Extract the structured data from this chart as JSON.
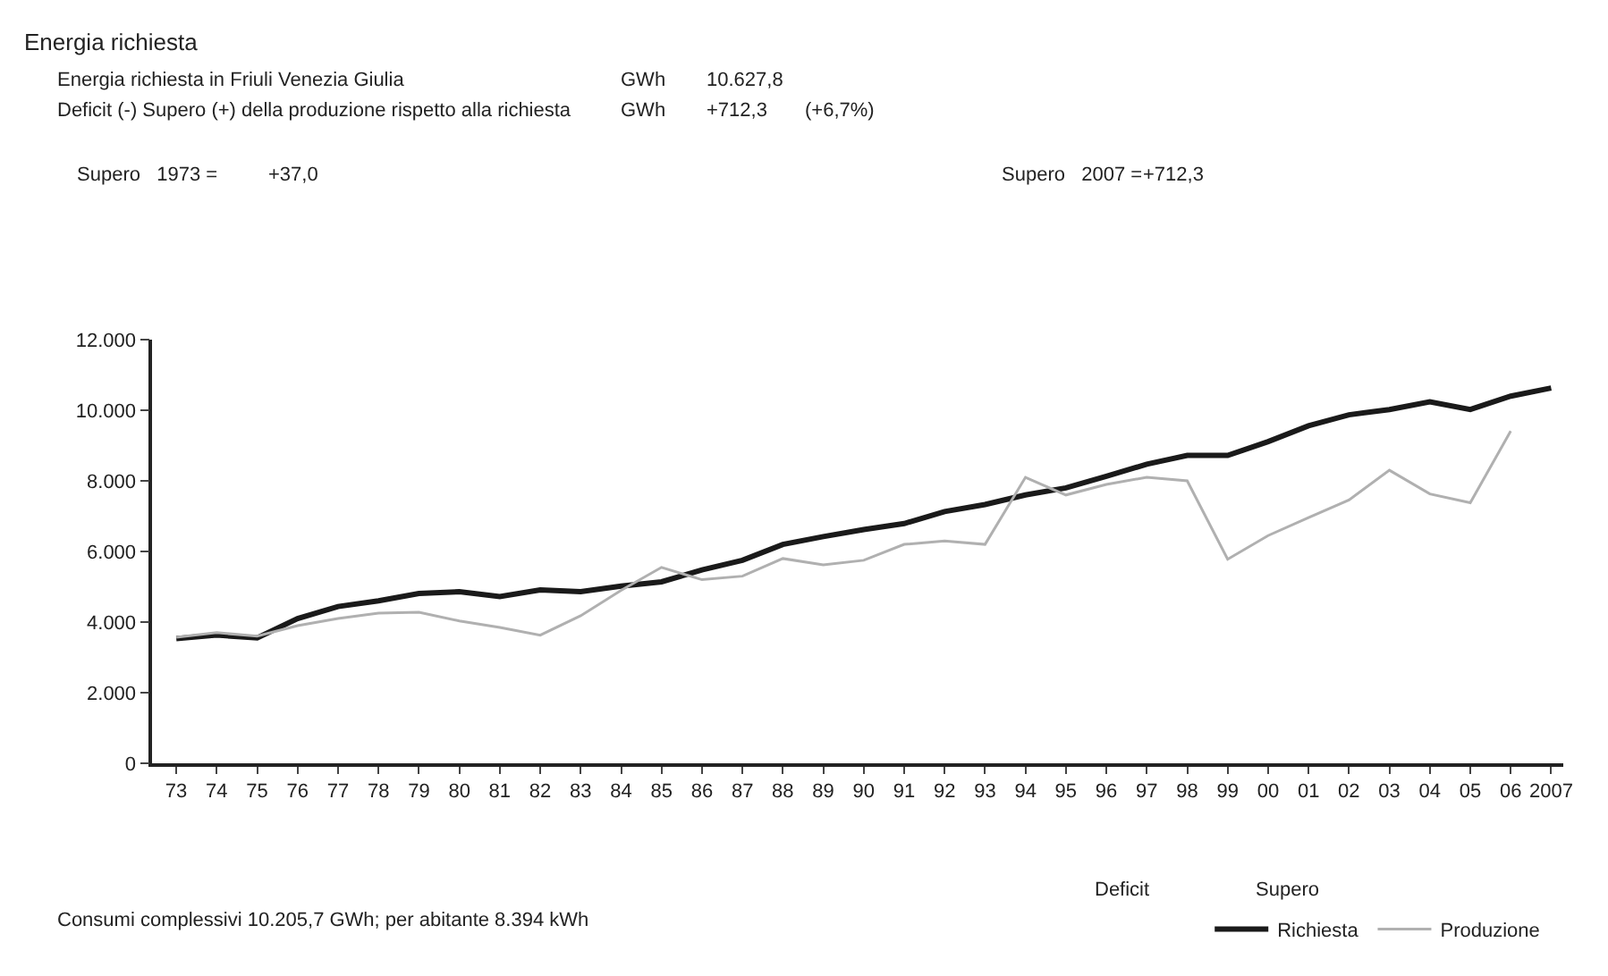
{
  "chart_data": {
    "type": "line",
    "title": "Energia richiesta",
    "categories": [
      "73",
      "74",
      "75",
      "76",
      "77",
      "78",
      "79",
      "80",
      "81",
      "82",
      "83",
      "84",
      "85",
      "86",
      "87",
      "88",
      "89",
      "90",
      "91",
      "92",
      "93",
      "94",
      "95",
      "96",
      "97",
      "98",
      "99",
      "00",
      "01",
      "02",
      "03",
      "04",
      "05",
      "06",
      "2007"
    ],
    "series": [
      {
        "name": "Richiesta",
        "color": "#1a1a1a",
        "values": [
          3530,
          3630,
          3550,
          4100,
          4440,
          4600,
          4810,
          4860,
          4720,
          4910,
          4860,
          5020,
          5140,
          5480,
          5750,
          6200,
          6420,
          6620,
          6790,
          7130,
          7330,
          7600,
          7800,
          8130,
          8470,
          8720,
          8720,
          9110,
          9560,
          9870,
          10020,
          10240,
          10020,
          10400,
          10630
        ]
      },
      {
        "name": "Produzione",
        "color": "#b0b0b0",
        "values": [
          3570,
          3700,
          3600,
          3900,
          4100,
          4250,
          4280,
          4030,
          3850,
          3630,
          4180,
          4900,
          5550,
          5200,
          5300,
          5800,
          5620,
          5750,
          6200,
          6300,
          6200,
          8100,
          7600,
          7900,
          8100,
          8000,
          5780,
          6450,
          6960,
          7460,
          8300,
          7630,
          7380,
          9410,
          null
        ]
      }
    ],
    "ylim": [
      0,
      12000
    ],
    "yticks": [
      {
        "value": 0,
        "label": "0"
      },
      {
        "value": 2000,
        "label": "2.000"
      },
      {
        "value": 4000,
        "label": "4.000"
      },
      {
        "value": 6000,
        "label": "6.000"
      },
      {
        "value": 8000,
        "label": "8.000"
      },
      {
        "value": 10000,
        "label": "10.000"
      },
      {
        "value": 12000,
        "label": "12.000"
      }
    ],
    "legend": "bottom right",
    "marker": "none",
    "line_style": "solid",
    "annotations": [
      "Energia richiesta in Friuli Venezia Giulia",
      "GWh",
      "10.627,8",
      "Deficit (-) Supero (+) della produzione rispetto alla richiesta",
      "GWh",
      "+712,3",
      "(+6,7%)",
      "Supero   1973 =",
      "+37,0",
      "Supero   2007 =",
      "+712,3",
      "Consumi complessivi 10.205,7 GWh; per abitante 8.394 kWh",
      "Deficit",
      "Supero"
    ]
  }
}
